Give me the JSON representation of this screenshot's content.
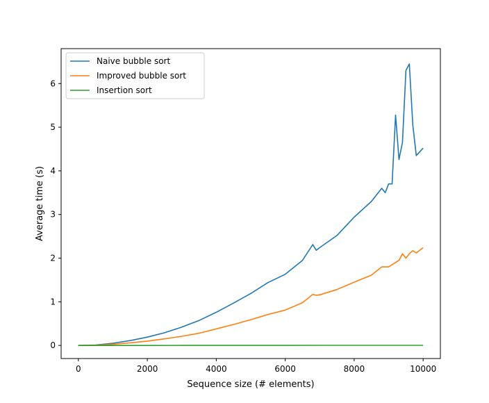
{
  "chart_data": {
    "type": "line",
    "title": "",
    "xlabel": "Sequence size (# elements)",
    "ylabel": "Average time (s)",
    "xlim": [
      -500,
      10500
    ],
    "ylim": [
      -0.3,
      6.8
    ],
    "xticks": [
      0,
      2000,
      4000,
      6000,
      8000,
      10000
    ],
    "yticks": [
      0,
      1,
      2,
      3,
      4,
      5,
      6
    ],
    "grid": false,
    "legend_position": "top-left",
    "series": [
      {
        "name": "Naive bubble sort",
        "color": "#1f77b4",
        "x": [
          0,
          500,
          1000,
          1500,
          2000,
          2500,
          3000,
          3500,
          4000,
          4500,
          5000,
          5500,
          6000,
          6500,
          6800,
          6900,
          7000,
          7500,
          8000,
          8500,
          8800,
          8900,
          9000,
          9100,
          9200,
          9300,
          9400,
          9500,
          9600,
          9700,
          9800,
          10000
        ],
        "values": [
          0.0,
          0.01,
          0.05,
          0.11,
          0.19,
          0.29,
          0.42,
          0.57,
          0.76,
          0.97,
          1.19,
          1.44,
          1.63,
          1.95,
          2.31,
          2.18,
          2.24,
          2.52,
          2.94,
          3.3,
          3.6,
          3.5,
          3.7,
          3.7,
          5.28,
          4.26,
          4.65,
          6.3,
          6.45,
          5.05,
          4.35,
          4.52
        ]
      },
      {
        "name": "Improved bubble sort",
        "color": "#ff7f0e",
        "x": [
          0,
          500,
          1000,
          1500,
          2000,
          2500,
          3000,
          3500,
          4000,
          4500,
          5000,
          5500,
          6000,
          6500,
          6800,
          6900,
          7000,
          7500,
          8000,
          8500,
          8800,
          9000,
          9300,
          9400,
          9500,
          9600,
          9700,
          9800,
          10000
        ],
        "values": [
          0.0,
          0.005,
          0.025,
          0.06,
          0.1,
          0.15,
          0.21,
          0.28,
          0.38,
          0.48,
          0.59,
          0.71,
          0.81,
          0.98,
          1.17,
          1.15,
          1.16,
          1.28,
          1.45,
          1.61,
          1.8,
          1.8,
          1.95,
          2.1,
          2.0,
          2.1,
          2.17,
          2.12,
          2.24
        ]
      },
      {
        "name": "Insertion sort",
        "color": "#2ca02c",
        "x": [
          0,
          1000,
          2000,
          3000,
          4000,
          5000,
          6000,
          7000,
          8000,
          9000,
          10000
        ],
        "values": [
          0.0,
          0.0,
          0.0,
          0.001,
          0.001,
          0.001,
          0.001,
          0.002,
          0.002,
          0.002,
          0.003
        ]
      }
    ]
  }
}
